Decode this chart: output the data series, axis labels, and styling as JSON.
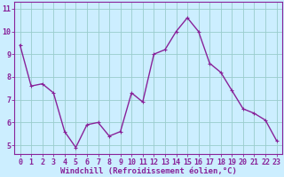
{
  "x": [
    0,
    1,
    2,
    3,
    4,
    5,
    6,
    7,
    8,
    9,
    10,
    11,
    12,
    13,
    14,
    15,
    16,
    17,
    18,
    19,
    20,
    21,
    22,
    23
  ],
  "y": [
    9.4,
    7.6,
    7.7,
    7.3,
    5.6,
    4.9,
    5.9,
    6.0,
    5.4,
    5.6,
    7.3,
    6.9,
    9.0,
    9.2,
    10.0,
    10.6,
    10.0,
    8.6,
    8.2,
    7.4,
    6.6,
    6.4,
    6.1,
    5.2
  ],
  "line_color": "#882299",
  "bg_color": "#cceeff",
  "grid_color": "#99cccc",
  "xlabel": "Windchill (Refroidissement éolien,°C)",
  "yticks": [
    5,
    6,
    7,
    8,
    9,
    10,
    11
  ],
  "ylim": [
    4.6,
    11.3
  ],
  "xlim": [
    -0.5,
    23.5
  ],
  "xlabel_fontsize": 6.5,
  "tick_fontsize": 6.0,
  "line_width": 1.0,
  "marker_size": 3.0
}
